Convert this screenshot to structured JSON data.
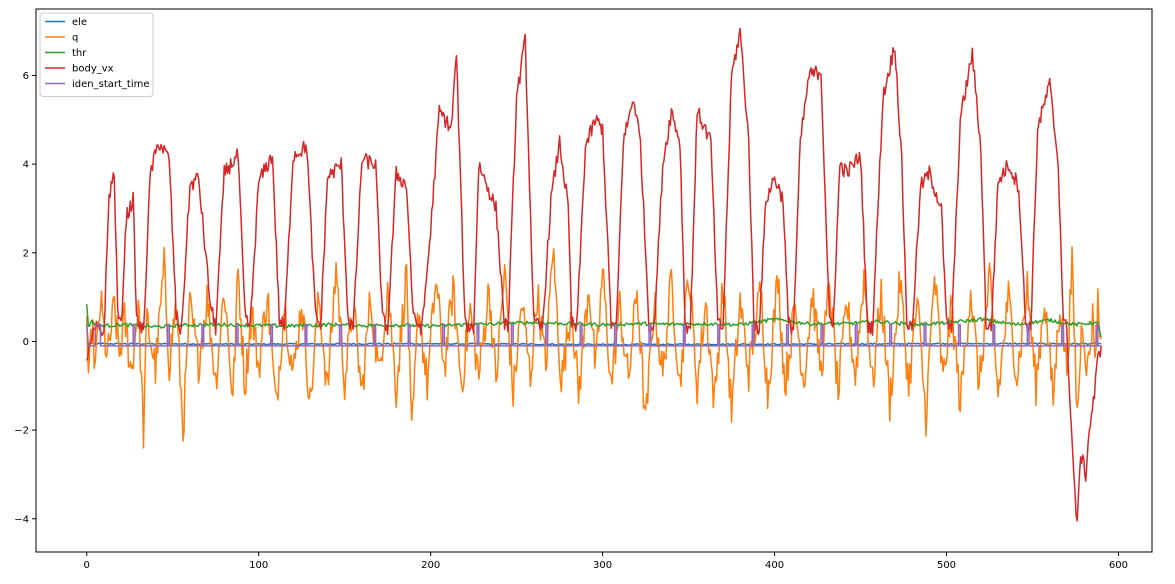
{
  "chart_data": {
    "type": "line",
    "title": "",
    "xlabel": "",
    "ylabel": "",
    "xlim": [
      -29.5,
      619.5
    ],
    "ylim": [
      -4.75,
      7.5
    ],
    "xticks": [
      0,
      100,
      200,
      300,
      400,
      500,
      600
    ],
    "yticks": [
      -4,
      -2,
      0,
      2,
      4,
      6
    ],
    "grid": false,
    "legend_position": "top-left",
    "series": [
      {
        "name": "ele",
        "color": "#1f77b4",
        "description": "near-constant small negative signal",
        "points": [
          [
            0,
            -0.05
          ],
          [
            100,
            -0.06
          ],
          [
            200,
            -0.05
          ],
          [
            300,
            -0.07
          ],
          [
            400,
            -0.06
          ],
          [
            500,
            -0.05
          ],
          [
            590,
            -0.05
          ]
        ]
      },
      {
        "name": "q",
        "color": "#ff7f0e",
        "description": "noisy oscillation around zero",
        "points": [
          [
            0,
            0.6
          ],
          [
            1,
            -1.15
          ],
          [
            3,
            0.4
          ],
          [
            5,
            -0.6
          ],
          [
            8,
            0.9
          ],
          [
            12,
            -0.4
          ],
          [
            16,
            0.8
          ],
          [
            19,
            -0.3
          ],
          [
            22,
            0.5
          ],
          [
            26,
            -0.7
          ],
          [
            30,
            0.9
          ],
          [
            33,
            -2.05
          ],
          [
            35,
            0.5
          ],
          [
            40,
            -0.6
          ],
          [
            45,
            1.7
          ],
          [
            48,
            -0.5
          ],
          [
            52,
            0.9
          ],
          [
            56,
            -2.0
          ],
          [
            60,
            0.8
          ],
          [
            65,
            -0.5
          ],
          [
            70,
            1.0
          ],
          [
            75,
            -0.9
          ],
          [
            80,
            1.2
          ],
          [
            85,
            -1.3
          ],
          [
            88,
            1.6
          ],
          [
            92,
            -1.0
          ],
          [
            96,
            0.7
          ],
          [
            100,
            -0.6
          ],
          [
            105,
            1.1
          ],
          [
            110,
            -1.5
          ],
          [
            115,
            0.9
          ],
          [
            120,
            -0.8
          ],
          [
            125,
            0.9
          ],
          [
            130,
            -1.4
          ],
          [
            135,
            1.0
          ],
          [
            140,
            -1.1
          ],
          [
            145,
            1.7
          ],
          [
            150,
            -0.9
          ],
          [
            155,
            0.8
          ],
          [
            160,
            -1.2
          ],
          [
            165,
            1.0
          ],
          [
            170,
            -0.8
          ],
          [
            175,
            1.3
          ],
          [
            180,
            -1.1
          ],
          [
            186,
            1.6
          ],
          [
            189,
            -2.2
          ],
          [
            193,
            0.8
          ],
          [
            198,
            -1.0
          ],
          [
            203,
            1.4
          ],
          [
            208,
            -0.6
          ],
          [
            213,
            1.2
          ],
          [
            218,
            -1.0
          ],
          [
            223,
            0.7
          ],
          [
            228,
            -0.8
          ],
          [
            234,
            1.2
          ],
          [
            238,
            -0.9
          ],
          [
            243,
            1.6
          ],
          [
            248,
            -1.2
          ],
          [
            253,
            0.9
          ],
          [
            258,
            -0.8
          ],
          [
            262,
            1.1
          ],
          [
            267,
            -0.6
          ],
          [
            271,
            2.15
          ],
          [
            276,
            -0.9
          ],
          [
            282,
            0.8
          ],
          [
            286,
            -1.2
          ],
          [
            292,
            1.3
          ],
          [
            296,
            -0.7
          ],
          [
            300,
            1.6
          ],
          [
            305,
            -1.0
          ],
          [
            310,
            0.8
          ],
          [
            315,
            -0.9
          ],
          [
            320,
            1.2
          ],
          [
            325,
            -1.9
          ],
          [
            330,
            0.9
          ],
          [
            335,
            -0.8
          ],
          [
            340,
            1.4
          ],
          [
            345,
            -1.0
          ],
          [
            350,
            1.6
          ],
          [
            355,
            -1.0
          ],
          [
            360,
            0.9
          ],
          [
            365,
            -1.4
          ],
          [
            370,
            1.3
          ],
          [
            375,
            -1.6
          ],
          [
            380,
            0.9
          ],
          [
            385,
            -0.7
          ],
          [
            392,
            1.2
          ],
          [
            396,
            -1.2
          ],
          [
            402,
            1.5
          ],
          [
            406,
            -1.0
          ],
          [
            412,
            0.8
          ],
          [
            417,
            -0.9
          ],
          [
            422,
            1.1
          ],
          [
            427,
            -0.7
          ],
          [
            432,
            1.3
          ],
          [
            437,
            -1.2
          ],
          [
            442,
            0.9
          ],
          [
            447,
            -0.8
          ],
          [
            452,
            1.5
          ],
          [
            457,
            -1.0
          ],
          [
            462,
            1.1
          ],
          [
            467,
            -1.4
          ],
          [
            473,
            1.4
          ],
          [
            478,
            -1.0
          ],
          [
            483,
            0.9
          ],
          [
            488,
            -1.7
          ],
          [
            493,
            1.5
          ],
          [
            498,
            -0.9
          ],
          [
            503,
            0.8
          ],
          [
            508,
            -1.4
          ],
          [
            514,
            1.2
          ],
          [
            519,
            -1.0
          ],
          [
            525,
            1.4
          ],
          [
            530,
            -1.2
          ],
          [
            536,
            1.0
          ],
          [
            541,
            -0.8
          ],
          [
            547,
            1.2
          ],
          [
            552,
            -1.0
          ],
          [
            557,
            1.0
          ],
          [
            562,
            -1.3
          ],
          [
            566,
            0.9
          ],
          [
            570,
            -0.6
          ],
          [
            573,
            1.7
          ],
          [
            576,
            -1.7
          ],
          [
            579,
            0.6
          ],
          [
            582,
            -0.7
          ],
          [
            585,
            0.5
          ],
          [
            587,
            -0.3
          ],
          [
            588,
            0.85
          ],
          [
            590,
            0.05
          ]
        ]
      },
      {
        "name": "thr",
        "color": "#2ca02c",
        "description": "roughly constant around 0.35-0.4",
        "points": [
          [
            0,
            0.82
          ],
          [
            1,
            0.35
          ],
          [
            3,
            0.45
          ],
          [
            5,
            0.38
          ],
          [
            10,
            0.35
          ],
          [
            20,
            0.38
          ],
          [
            40,
            0.33
          ],
          [
            60,
            0.37
          ],
          [
            80,
            0.38
          ],
          [
            100,
            0.36
          ],
          [
            120,
            0.35
          ],
          [
            140,
            0.38
          ],
          [
            160,
            0.36
          ],
          [
            180,
            0.37
          ],
          [
            200,
            0.35
          ],
          [
            220,
            0.38
          ],
          [
            240,
            0.4
          ],
          [
            260,
            0.43
          ],
          [
            280,
            0.4
          ],
          [
            300,
            0.38
          ],
          [
            320,
            0.4
          ],
          [
            340,
            0.39
          ],
          [
            360,
            0.4
          ],
          [
            380,
            0.38
          ],
          [
            400,
            0.5
          ],
          [
            420,
            0.4
          ],
          [
            440,
            0.4
          ],
          [
            460,
            0.45
          ],
          [
            480,
            0.38
          ],
          [
            500,
            0.42
          ],
          [
            520,
            0.5
          ],
          [
            540,
            0.38
          ],
          [
            560,
            0.48
          ],
          [
            575,
            0.38
          ],
          [
            585,
            0.42
          ],
          [
            588,
            0.4
          ],
          [
            590,
            0.1
          ]
        ]
      },
      {
        "name": "body_vx",
        "color": "#d62728",
        "description": "repeated pulses up to ~4-7 with a negative dip near the end",
        "points": [
          [
            0,
            -0.4
          ],
          [
            5,
            0.3
          ],
          [
            10,
            0.2
          ],
          [
            13,
            3.3
          ],
          [
            16,
            3.8
          ],
          [
            18,
            0.7
          ],
          [
            20,
            0.3
          ],
          [
            23,
            2.8
          ],
          [
            27,
            3.2
          ],
          [
            29,
            0.5
          ],
          [
            33,
            0.2
          ],
          [
            37,
            3.8
          ],
          [
            42,
            4.5
          ],
          [
            48,
            4.1
          ],
          [
            52,
            0.6
          ],
          [
            55,
            0.2
          ],
          [
            60,
            3.5
          ],
          [
            65,
            3.7
          ],
          [
            72,
            0.8
          ],
          [
            75,
            0.3
          ],
          [
            80,
            3.8
          ],
          [
            88,
            4.2
          ],
          [
            92,
            0.6
          ],
          [
            95,
            0.3
          ],
          [
            100,
            3.6
          ],
          [
            108,
            4.2
          ],
          [
            112,
            0.5
          ],
          [
            115,
            0.3
          ],
          [
            120,
            4.2
          ],
          [
            128,
            4.4
          ],
          [
            133,
            0.6
          ],
          [
            136,
            0.3
          ],
          [
            140,
            3.7
          ],
          [
            148,
            4.0
          ],
          [
            152,
            0.5
          ],
          [
            155,
            0.3
          ],
          [
            160,
            4.1
          ],
          [
            168,
            4.0
          ],
          [
            172,
            0.5
          ],
          [
            175,
            0.3
          ],
          [
            180,
            3.8
          ],
          [
            186,
            3.5
          ],
          [
            190,
            0.5
          ],
          [
            195,
            0.3
          ],
          [
            200,
            2.5
          ],
          [
            205,
            5.2
          ],
          [
            212,
            4.8
          ],
          [
            215,
            6.5
          ],
          [
            220,
            0.4
          ],
          [
            225,
            0.3
          ],
          [
            228,
            4.0
          ],
          [
            233,
            3.5
          ],
          [
            238,
            3.0
          ],
          [
            243,
            0.4
          ],
          [
            245,
            0.3
          ],
          [
            250,
            5.5
          ],
          [
            255,
            6.8
          ],
          [
            260,
            0.4
          ],
          [
            265,
            0.3
          ],
          [
            270,
            3.2
          ],
          [
            275,
            4.5
          ],
          [
            280,
            3.0
          ],
          [
            282,
            0.4
          ],
          [
            285,
            0.3
          ],
          [
            290,
            4.4
          ],
          [
            296,
            5.0
          ],
          [
            300,
            4.8
          ],
          [
            305,
            0.4
          ],
          [
            308,
            0.3
          ],
          [
            312,
            4.5
          ],
          [
            318,
            5.5
          ],
          [
            322,
            4.5
          ],
          [
            327,
            0.4
          ],
          [
            330,
            0.3
          ],
          [
            335,
            4.0
          ],
          [
            340,
            5.2
          ],
          [
            345,
            4.5
          ],
          [
            348,
            0.4
          ],
          [
            351,
            0.3
          ],
          [
            355,
            5.2
          ],
          [
            363,
            4.5
          ],
          [
            367,
            0.4
          ],
          [
            370,
            0.3
          ],
          [
            375,
            6.0
          ],
          [
            380,
            7.0
          ],
          [
            385,
            4.5
          ],
          [
            388,
            0.4
          ],
          [
            391,
            0.3
          ],
          [
            395,
            3.2
          ],
          [
            400,
            3.7
          ],
          [
            405,
            3.2
          ],
          [
            408,
            0.4
          ],
          [
            411,
            0.3
          ],
          [
            415,
            4.5
          ],
          [
            420,
            6.0
          ],
          [
            427,
            6.1
          ],
          [
            432,
            0.4
          ],
          [
            434,
            0.3
          ],
          [
            438,
            4.0
          ],
          [
            442,
            3.8
          ],
          [
            450,
            4.2
          ],
          [
            454,
            0.4
          ],
          [
            457,
            0.3
          ],
          [
            463,
            5.5
          ],
          [
            470,
            6.7
          ],
          [
            474,
            4.0
          ],
          [
            477,
            0.4
          ],
          [
            480,
            0.3
          ],
          [
            485,
            3.5
          ],
          [
            490,
            3.8
          ],
          [
            497,
            3.0
          ],
          [
            500,
            0.4
          ],
          [
            503,
            0.3
          ],
          [
            508,
            5.0
          ],
          [
            515,
            6.5
          ],
          [
            520,
            4.3
          ],
          [
            523,
            0.4
          ],
          [
            526,
            0.3
          ],
          [
            530,
            3.6
          ],
          [
            536,
            4.0
          ],
          [
            542,
            3.5
          ],
          [
            546,
            0.4
          ],
          [
            549,
            0.3
          ],
          [
            553,
            4.8
          ],
          [
            560,
            5.8
          ],
          [
            565,
            4.0
          ],
          [
            568,
            0.4
          ],
          [
            570,
            0.3
          ],
          [
            572,
            -1.5
          ],
          [
            574,
            -3.0
          ],
          [
            576,
            -4.2
          ],
          [
            578,
            -2.5
          ],
          [
            581,
            -3.0
          ],
          [
            583,
            -2.0
          ],
          [
            586,
            -1.2
          ],
          [
            588,
            -0.4
          ],
          [
            590,
            -0.1
          ]
        ]
      },
      {
        "name": "iden_start_time",
        "color": "#9467bd",
        "description": "square wave between about -0.1 and 0.4",
        "points": [
          [
            0,
            0.4
          ],
          [
            1,
            -0.1
          ],
          [
            5,
            0.4
          ],
          [
            8,
            0.4
          ],
          [
            9,
            -0.1
          ],
          [
            30,
            -0.1
          ],
          [
            31,
            0.4
          ],
          [
            40,
            0.4
          ],
          [
            41,
            -0.1
          ],
          [
            590,
            -0.1
          ]
        ],
        "period": 20,
        "high": 0.38,
        "low": -0.1
      }
    ]
  }
}
